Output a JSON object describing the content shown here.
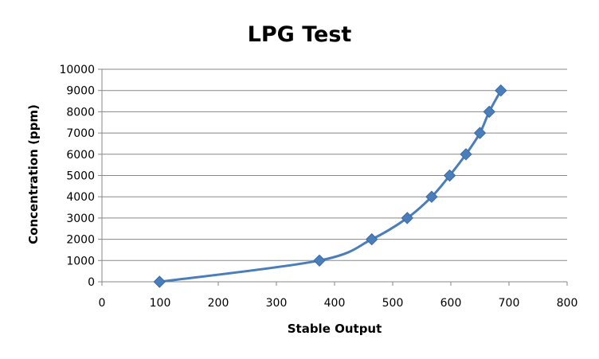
{
  "chart_data": {
    "type": "scatter",
    "title": "LPG Test",
    "xlabel": "Stable Output",
    "ylabel": "Concentration (ppm)",
    "xlim": [
      0,
      800
    ],
    "ylim": [
      0,
      10000
    ],
    "x_ticks": [
      "0",
      "100",
      "200",
      "300",
      "400",
      "500",
      "600",
      "700",
      "800"
    ],
    "y_ticks": [
      "0",
      "1000",
      "2000",
      "3000",
      "4000",
      "5000",
      "6000",
      "7000",
      "8000",
      "9000",
      "10000"
    ],
    "grid": "horizontal",
    "legend": "none",
    "line_style": "smoothed",
    "marker": "diamond",
    "series": [
      {
        "color": "#4a7ebb",
        "x": [
          99,
          374,
          464,
          525,
          567,
          598,
          626,
          650,
          666,
          686
        ],
        "y": [
          0,
          1000,
          2000,
          3000,
          4000,
          5000,
          6000,
          7000,
          8000,
          9000
        ]
      }
    ]
  }
}
